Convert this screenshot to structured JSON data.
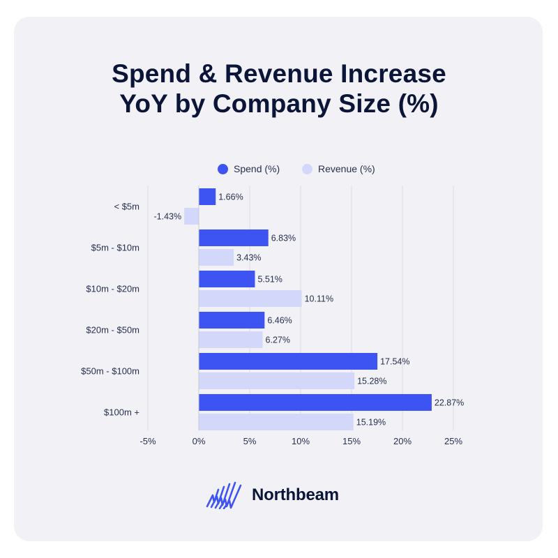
{
  "colors": {
    "spend": "#3e54f2",
    "revenue": "#d3d8fb",
    "title": "#0b1538",
    "text": "#27304d",
    "grid": "#dcdce6",
    "card": "#f1f1f6"
  },
  "title_line1": "Spend & Revenue Increase",
  "title_line2": "YoY by Company Size (%)",
  "brand": {
    "name": "Northbeam",
    "icon": "northbeam-logo-icon"
  },
  "chart_data": {
    "type": "bar",
    "orientation": "horizontal",
    "title": "Spend & Revenue Increase YoY by Company Size (%)",
    "categories": [
      "< $5m",
      "$5m - $10m",
      "$10m - $20m",
      "$20m - $50m",
      "$50m - $100m",
      "$100m +"
    ],
    "series": [
      {
        "name": "Spend (%)",
        "values": [
          1.66,
          6.83,
          5.51,
          6.46,
          17.54,
          22.87
        ],
        "labels": [
          "1.66%",
          "6.83%",
          "5.51%",
          "6.46%",
          "17.54%",
          "22.87%"
        ]
      },
      {
        "name": "Revenue (%)",
        "values": [
          -1.43,
          3.43,
          10.11,
          6.27,
          15.28,
          15.19
        ],
        "labels": [
          "-1.43%",
          "3.43%",
          "10.11%",
          "6.27%",
          "15.28%",
          "15.19%"
        ]
      }
    ],
    "xlim": [
      -5,
      25
    ],
    "xticks": [
      -5,
      0,
      5,
      10,
      15,
      20,
      25
    ],
    "xtick_labels": [
      "-5%",
      "0%",
      "5%",
      "10%",
      "15%",
      "20%",
      "25%"
    ],
    "grid": true,
    "legend": "top-center"
  }
}
